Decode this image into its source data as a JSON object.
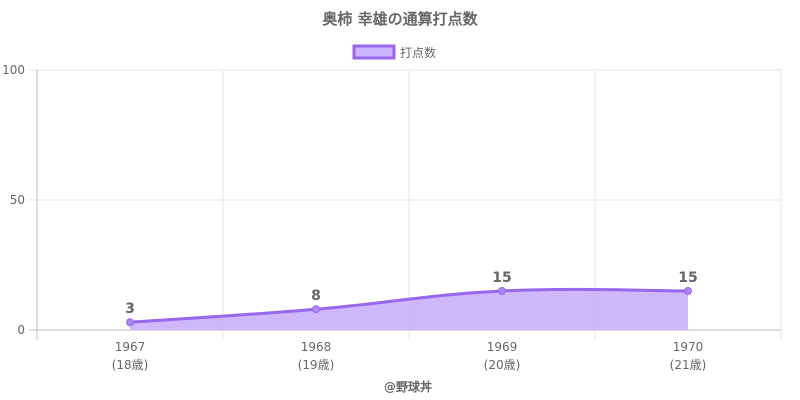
{
  "chart_data": {
    "type": "area",
    "title": "奥柿 幸雄の通算打点数",
    "x": [
      "1967",
      "1968",
      "1969",
      "1970"
    ],
    "x_sublabels": [
      "(18歳)",
      "(19歳)",
      "(20歳)",
      "(21歳)"
    ],
    "series": [
      {
        "name": "打点数",
        "values": [
          3,
          8,
          15,
          15
        ]
      }
    ],
    "data_labels": [
      "3",
      "8",
      "15",
      "15"
    ],
    "yticks": [
      "0",
      "50",
      "100"
    ],
    "ylim": [
      0,
      100
    ],
    "grid": true,
    "legend": "top",
    "colors": {
      "line": "#9966EE",
      "fill": "#CBB3FB",
      "point": "#AA88F0"
    }
  },
  "footer": "@野球丼"
}
